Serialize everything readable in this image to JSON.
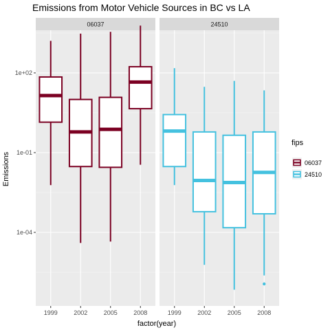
{
  "chart_data": {
    "type": "boxplot",
    "title": "Emissions from Motor Vehicle Sources in BC vs LA",
    "xlabel": "factor(year)",
    "ylabel": "Emissions",
    "y_scale": "log10",
    "ylim": [
      1e-06,
      10000
    ],
    "y_ticks": [
      {
        "value": 0.0001,
        "label": "1e-04"
      },
      {
        "value": 0.1,
        "label": "1e-01"
      },
      {
        "value": 100,
        "label": "1e+02"
      }
    ],
    "categories": [
      "1999",
      "2002",
      "2005",
      "2008"
    ],
    "grid": true,
    "legend": {
      "title": "fips",
      "placement": "right",
      "entries": [
        {
          "name": "06037",
          "color": "#7b0022"
        },
        {
          "name": "24510",
          "color": "#44c1df"
        }
      ]
    },
    "panels": [
      {
        "strip": "06037",
        "color": "#7b0022",
        "boxes": [
          {
            "x": "1999",
            "whisker_low": 0.006,
            "q1": 1.4,
            "median": 14,
            "q3": 70,
            "whisker_high": 1600,
            "outliers": []
          },
          {
            "x": "2002",
            "whisker_low": 4e-05,
            "q1": 0.03,
            "median": 0.6,
            "q3": 10,
            "whisker_high": 3000,
            "outliers": []
          },
          {
            "x": "2005",
            "whisker_low": 4.5e-05,
            "q1": 0.028,
            "median": 0.75,
            "q3": 12,
            "whisker_high": 3500,
            "outliers": []
          },
          {
            "x": "2008",
            "whisker_low": 0.035,
            "q1": 4.5,
            "median": 45,
            "q3": 170,
            "whisker_high": 6000,
            "outliers": []
          }
        ]
      },
      {
        "strip": "24510",
        "color": "#44c1df",
        "boxes": [
          {
            "x": "1999",
            "whisker_low": 0.006,
            "q1": 0.03,
            "median": 0.65,
            "q3": 2.7,
            "whisker_high": 150,
            "outliers": []
          },
          {
            "x": "2002",
            "whisker_low": 6e-06,
            "q1": 0.0006,
            "median": 0.009,
            "q3": 0.6,
            "whisker_high": 30,
            "outliers": []
          },
          {
            "x": "2005",
            "whisker_low": 7e-07,
            "q1": 0.00015,
            "median": 0.0075,
            "q3": 0.45,
            "whisker_high": 50,
            "outliers": []
          },
          {
            "x": "2008",
            "whisker_low": 2.4e-06,
            "q1": 0.0005,
            "median": 0.018,
            "q3": 0.6,
            "whisker_high": 22,
            "outliers": [
              1.15e-06
            ]
          }
        ]
      }
    ]
  }
}
